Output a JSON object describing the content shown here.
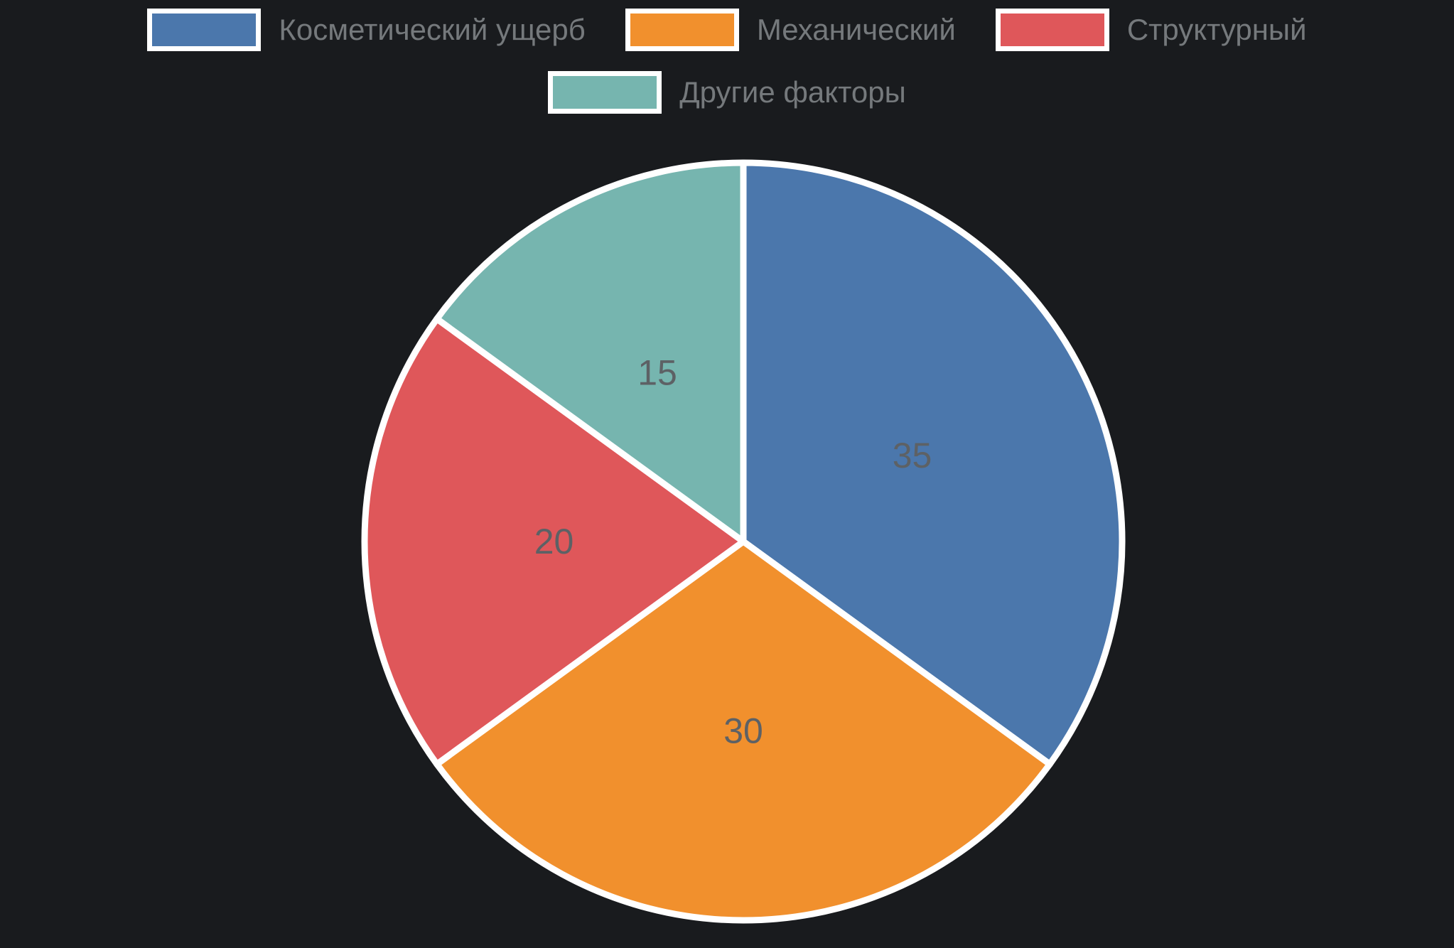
{
  "page": {
    "background": "#191b1e"
  },
  "chart_data": {
    "type": "pie",
    "title": "",
    "labels": [
      "Косметический ущерб",
      "Механический",
      "Структурный",
      "Другие факторы"
    ],
    "values": [
      35,
      30,
      20,
      15
    ],
    "colors": [
      "#4b77ac",
      "#f1902d",
      "#df575a",
      "#76b5af"
    ],
    "start_angle_deg": -90,
    "direction": "clockwise",
    "slice_border_color": "#ffffff",
    "slice_border_width": 9,
    "value_label_color": "#5d6165",
    "value_label_radius_ratio": 0.5,
    "legend": {
      "position": "top",
      "rows": [
        [
          0,
          1,
          2
        ],
        [
          3
        ]
      ],
      "text_color": "#75797c",
      "swatch_border_color": "#ffffff"
    }
  }
}
